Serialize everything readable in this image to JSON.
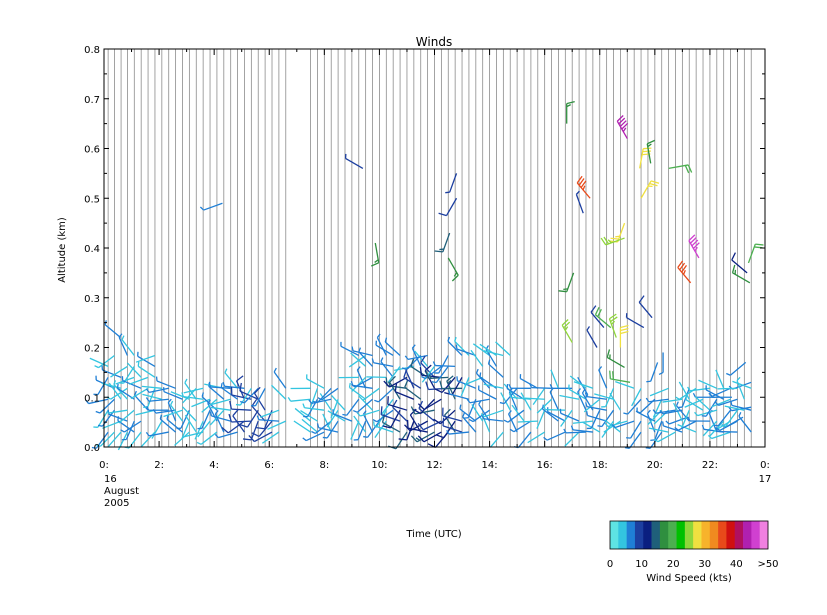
{
  "chart_data": {
    "type": "wind-barb time-height plot",
    "title": "Winds",
    "xlabel": "Time (UTC)",
    "ylabel": "Altitude (km)",
    "xlim": [
      0,
      24
    ],
    "ylim": [
      0.0,
      0.8
    ],
    "y_ticks": [
      "0.0",
      "0.1",
      "0.2",
      "0.3",
      "0.4",
      "0.5",
      "0.6",
      "0.7",
      "0.8"
    ],
    "x_ticks": [
      {
        "hour": 0,
        "label": "0:"
      },
      {
        "hour": 2,
        "label": "2:"
      },
      {
        "hour": 4,
        "label": "4:"
      },
      {
        "hour": 6,
        "label": "6:"
      },
      {
        "hour": 8,
        "label": "8:"
      },
      {
        "hour": 10,
        "label": "10:"
      },
      {
        "hour": 12,
        "label": "12:"
      },
      {
        "hour": 14,
        "label": "14:"
      },
      {
        "hour": 16,
        "label": "16:"
      },
      {
        "hour": 18,
        "label": "18:"
      },
      {
        "hour": 20,
        "label": "20:"
      },
      {
        "hour": 22,
        "label": "22:"
      },
      {
        "hour": 24,
        "label": "0:"
      }
    ],
    "date_start": [
      "16",
      "August",
      "2005"
    ],
    "date_end": "17",
    "profile_times_hours": [
      0.15,
      0.38,
      0.62,
      0.85,
      1.1,
      1.35,
      1.6,
      1.85,
      2.1,
      2.35,
      2.6,
      2.85,
      3.1,
      3.35,
      3.6,
      3.85,
      4.1,
      4.35,
      4.6,
      4.85,
      5.1,
      5.35,
      5.6,
      5.85,
      6.1,
      6.35,
      6.6,
      7.5,
      7.75,
      8.0,
      8.25,
      8.5,
      8.75,
      9.0,
      9.25,
      9.5,
      9.75,
      10.0,
      10.25,
      10.5,
      10.75,
      11.0,
      11.25,
      11.5,
      11.75,
      12.0,
      12.25,
      12.5,
      12.75,
      13.0,
      13.25,
      13.5,
      13.75,
      14.0,
      14.25,
      14.5,
      14.75,
      15.0,
      15.25,
      15.5,
      15.75,
      16.0,
      16.25,
      16.5,
      16.75,
      17.0,
      17.25,
      17.5,
      17.75,
      18.0,
      18.25,
      18.5,
      18.75,
      19.0,
      19.25,
      19.5,
      19.75,
      20.0,
      20.25,
      20.5,
      20.75,
      21.0,
      21.25,
      21.5,
      21.75,
      22.0,
      22.25,
      22.5,
      22.75,
      23.0,
      23.25,
      23.5
    ],
    "colorbar": {
      "title": "Wind Speed (kts)",
      "tick_labels": [
        {
          "label": "0",
          "pos": 0.0
        },
        {
          "label": "10",
          "pos": 0.2
        },
        {
          "label": "20",
          "pos": 0.4
        },
        {
          "label": "30",
          "pos": 0.6
        },
        {
          "label": "40",
          "pos": 0.8
        },
        {
          "label": ">50",
          "pos": 1.0
        }
      ],
      "colors": [
        "#5ee3e3",
        "#33c5e0",
        "#1f7fd6",
        "#1c3fa0",
        "#0a1f80",
        "#1f5f7a",
        "#2f8f3f",
        "#4caf50",
        "#00c000",
        "#8fd63a",
        "#f0e040",
        "#f7b32b",
        "#f08a20",
        "#e84a1a",
        "#d01010",
        "#b01060",
        "#b020b0",
        "#d040d0",
        "#f080e0"
      ]
    },
    "wind_barbs": [
      {
        "t": 0.6,
        "alt": 0.22,
        "speed": 8,
        "dir": 310
      },
      {
        "t": 4.3,
        "alt": 0.49,
        "speed": 8,
        "dir": 250
      },
      {
        "t": 9.4,
        "alt": 0.56,
        "speed": 9,
        "dir": 300
      },
      {
        "t": 9.85,
        "alt": 0.41,
        "speed": 17,
        "dir": 170
      },
      {
        "t": 12.5,
        "alt": 0.38,
        "speed": 18,
        "dir": 150
      },
      {
        "t": 12.55,
        "alt": 0.43,
        "speed": 15,
        "dir": 200
      },
      {
        "t": 12.8,
        "alt": 0.55,
        "speed": 9,
        "dir": 200
      },
      {
        "t": 12.8,
        "alt": 0.5,
        "speed": 11,
        "dir": 210
      },
      {
        "t": 16.8,
        "alt": 0.65,
        "speed": 19,
        "dir": 0
      },
      {
        "t": 17.05,
        "alt": 0.35,
        "speed": 18,
        "dir": 200
      },
      {
        "t": 17.4,
        "alt": 0.47,
        "speed": 9,
        "dir": 340
      },
      {
        "t": 17.65,
        "alt": 0.5,
        "speed": 38,
        "dir": 320
      },
      {
        "t": 18.9,
        "alt": 0.45,
        "speed": 29,
        "dir": 200
      },
      {
        "t": 18.9,
        "alt": 0.42,
        "speed": 27,
        "dir": 250
      },
      {
        "t": 19.0,
        "alt": 0.62,
        "speed": 46,
        "dir": 330
      },
      {
        "t": 19.5,
        "alt": 0.5,
        "speed": 28,
        "dir": 30
      },
      {
        "t": 19.45,
        "alt": 0.56,
        "speed": 30,
        "dir": 10
      },
      {
        "t": 19.85,
        "alt": 0.57,
        "speed": 19,
        "dir": 350
      },
      {
        "t": 20.5,
        "alt": 0.56,
        "speed": 21,
        "dir": 80
      },
      {
        "t": 21.3,
        "alt": 0.33,
        "speed": 38,
        "dir": 320
      },
      {
        "t": 21.6,
        "alt": 0.38,
        "speed": 48,
        "dir": 330
      },
      {
        "t": 23.4,
        "alt": 0.37,
        "speed": 20,
        "dir": 20
      },
      {
        "t": 23.45,
        "alt": 0.33,
        "speed": 17,
        "dir": 300
      },
      {
        "t": 23.35,
        "alt": 0.35,
        "speed": 12,
        "dir": 310
      },
      {
        "t": 18.4,
        "alt": 0.24,
        "speed": 20,
        "dir": 310
      },
      {
        "t": 18.6,
        "alt": 0.22,
        "speed": 27,
        "dir": 340
      },
      {
        "t": 18.75,
        "alt": 0.2,
        "speed": 30,
        "dir": 0
      },
      {
        "t": 18.9,
        "alt": 0.16,
        "speed": 18,
        "dir": 300
      },
      {
        "t": 19.1,
        "alt": 0.13,
        "speed": 21,
        "dir": 280
      },
      {
        "t": 17.0,
        "alt": 0.21,
        "speed": 27,
        "dir": 330
      },
      {
        "t": 18.15,
        "alt": 0.24,
        "speed": 10,
        "dir": 320
      },
      {
        "t": 17.9,
        "alt": 0.2,
        "speed": 9,
        "dir": 330
      },
      {
        "t": 19.6,
        "alt": 0.24,
        "speed": 9,
        "dir": 300
      },
      {
        "t": 19.9,
        "alt": 0.26,
        "speed": 10,
        "dir": 320
      },
      {
        "t": 20.3,
        "alt": 0.19,
        "speed": 8,
        "dir": 180
      },
      {
        "t": 20.1,
        "alt": 0.17,
        "speed": 8,
        "dir": 200
      },
      {
        "t": 21.2,
        "alt": 0.06,
        "speed": 8,
        "dir": 250
      },
      {
        "t": 22.2,
        "alt": 0.1,
        "speed": 8,
        "dir": 270
      },
      {
        "t": 22.8,
        "alt": 0.1,
        "speed": 8,
        "dir": 270
      },
      {
        "t": 23.5,
        "alt": 0.13,
        "speed": 8,
        "dir": 250
      },
      {
        "t": 23.3,
        "alt": 0.17,
        "speed": 8,
        "dir": 230
      },
      {
        "t": 23.5,
        "alt": 0.08,
        "speed": 8,
        "dir": 260
      },
      {
        "t": 23.2,
        "alt": 0.06,
        "speed": 8,
        "dir": 240
      },
      {
        "t": 17.2,
        "alt": 0.14,
        "speed": 7,
        "dir": 150
      }
    ]
  }
}
